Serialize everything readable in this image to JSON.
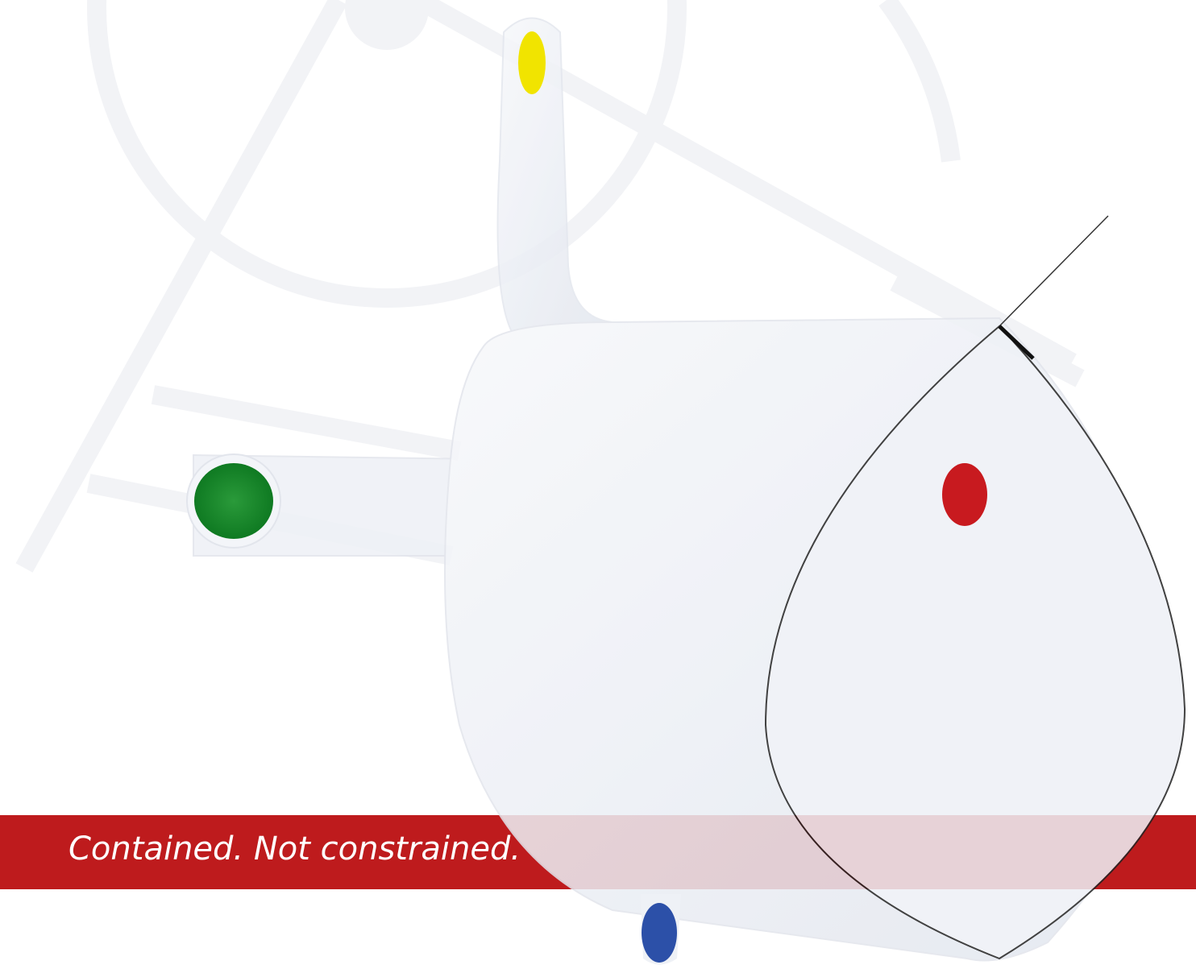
{
  "tagline": "Contained. Not constrained."
}
